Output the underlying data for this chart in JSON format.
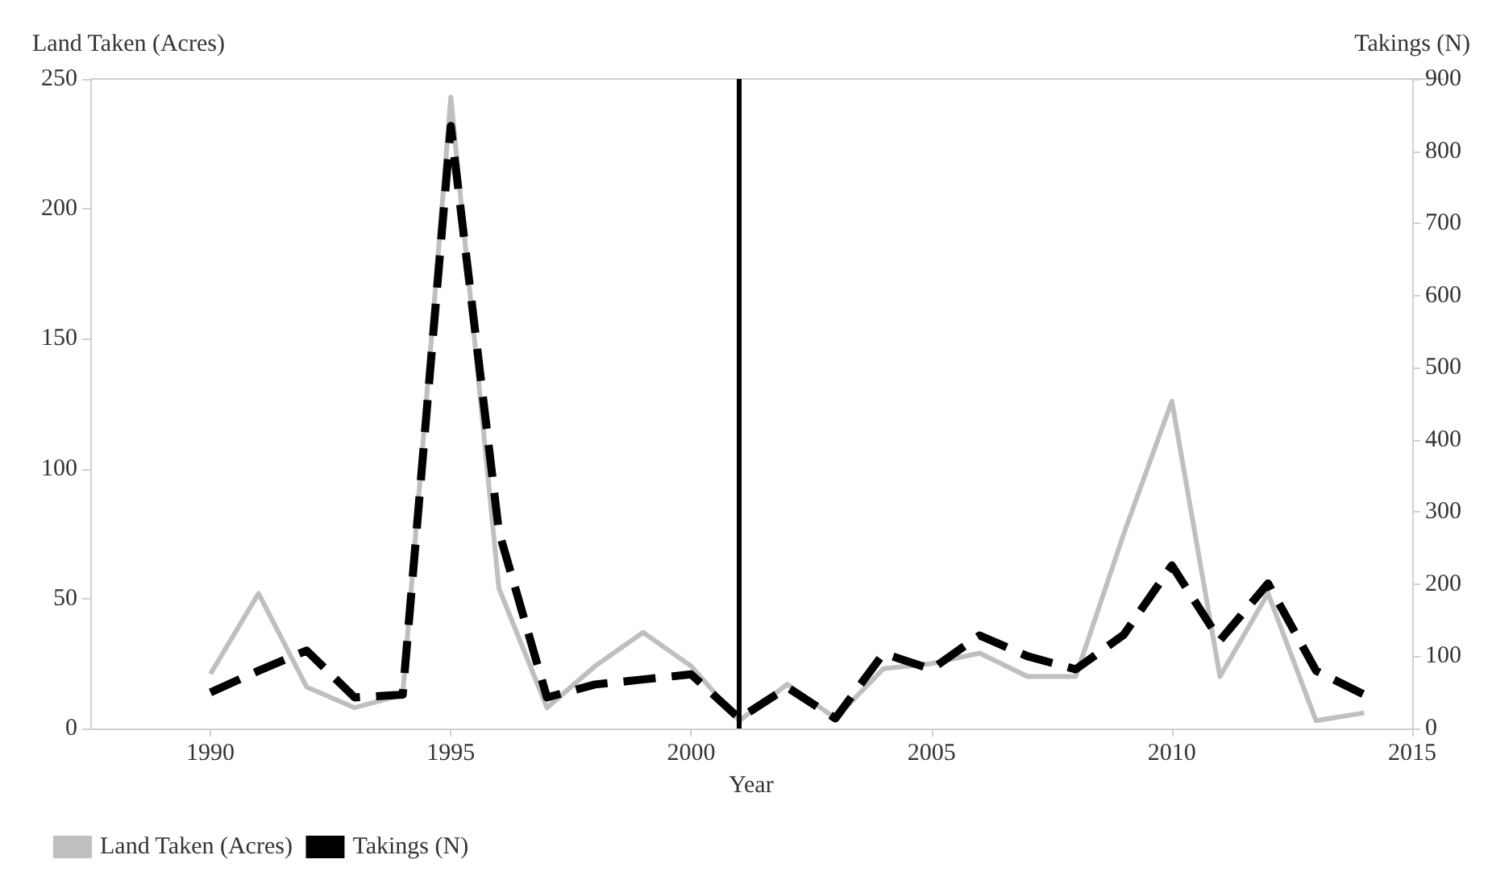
{
  "chart_data": {
    "type": "line",
    "xlabel": "Year",
    "ylabel": "Land Taken (Acres)",
    "y2label": "Takings (N)",
    "x": [
      1990,
      1991,
      1992,
      1993,
      1994,
      1995,
      1996,
      1997,
      1998,
      1999,
      2000,
      2001,
      2002,
      2003,
      2004,
      2005,
      2006,
      2007,
      2008,
      2009,
      2010,
      2011,
      2012,
      2013,
      2014
    ],
    "series": [
      {
        "name": "Land Taken (Acres)",
        "color": "#bfbfbf",
        "line_style": "solid",
        "values": [
          21,
          52,
          16,
          8,
          13,
          243,
          54,
          8,
          24,
          37,
          24,
          3,
          17,
          4,
          23,
          25,
          29,
          20,
          20,
          75,
          126,
          20,
          52,
          3,
          6
        ]
      },
      {
        "name": "Takings (N)",
        "color": "#000000",
        "line_style": "dashed",
        "axis": "y2",
        "values": [
          50,
          80,
          108,
          43,
          47,
          835,
          273,
          43,
          61,
          68,
          75,
          14,
          57,
          14,
          104,
          82,
          129,
          100,
          82,
          130,
          226,
          122,
          201,
          80,
          47
        ]
      }
    ],
    "xlim": [
      1987.5,
      2015
    ],
    "xticks": [
      1990,
      1995,
      2000,
      2005,
      2010,
      2015
    ],
    "ylim": [
      0,
      250
    ],
    "yticks": [
      0,
      50,
      100,
      150,
      200,
      250
    ],
    "y2lim": [
      0,
      900
    ],
    "y2ticks": [
      0,
      100,
      200,
      300,
      400,
      500,
      600,
      700,
      800,
      900
    ],
    "ref_lines": [
      {
        "axis": "x",
        "value": 2001,
        "color": "#000000",
        "line_style": "solid"
      }
    ],
    "grid": false,
    "legend": "bottom left",
    "marker": "none"
  }
}
